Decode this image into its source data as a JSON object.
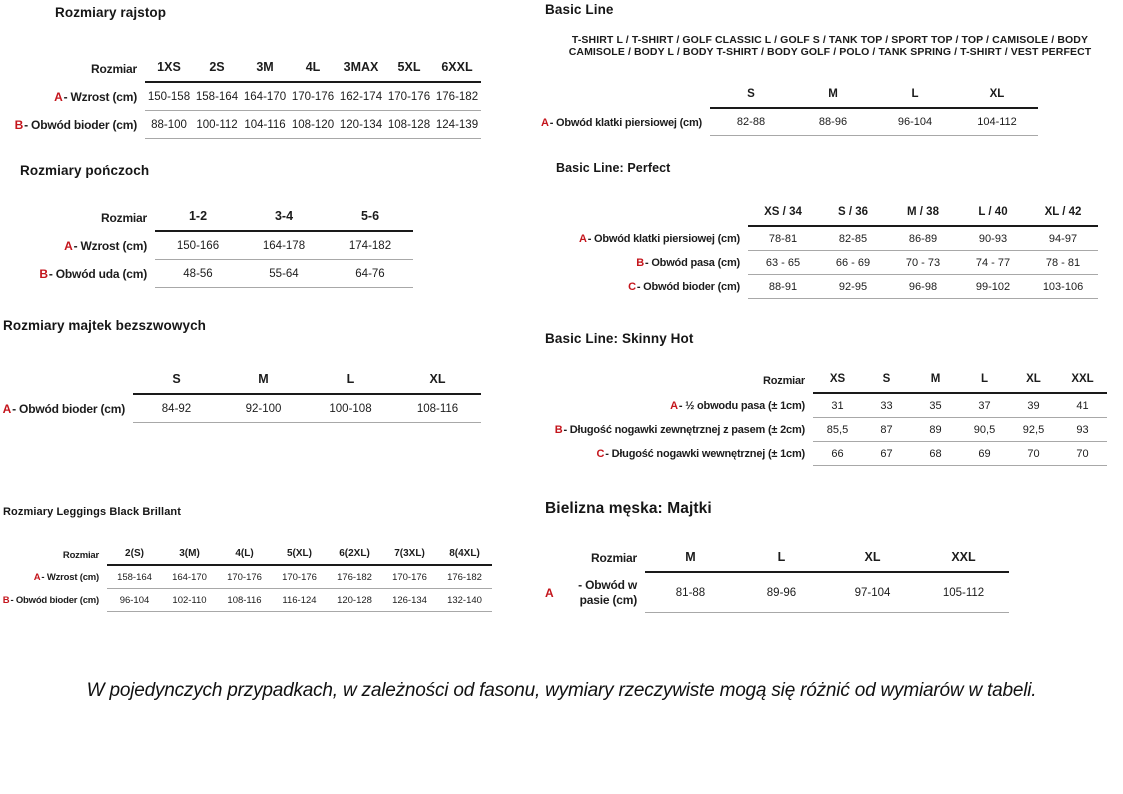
{
  "page": {
    "accent_red": "#c4151c",
    "footnote": "W pojedynczych przypadkach, w zależności od fasonu, wymiary rzeczywiste mogą się różnić od wymiarów w tabeli."
  },
  "sections": [
    {
      "id": "rajstop",
      "title": "Rozmiary rajstop",
      "table": {
        "corner": "Rozmiar",
        "columns": [
          "1XS",
          "2S",
          "3M",
          "4L",
          "3MAX",
          "5XL",
          "6XXL"
        ],
        "rows": [
          {
            "letter": "A",
            "label": " - Wzrost (cm)",
            "values": [
              "150-158",
              "158-164",
              "164-170",
              "170-176",
              "162-174",
              "170-176",
              "176-182"
            ]
          },
          {
            "letter": "B",
            "label": " - Obwód bioder (cm)",
            "values": [
              "88-100",
              "100-112",
              "104-116",
              "108-120",
              "120-134",
              "108-128",
              "124-139"
            ]
          }
        ]
      }
    },
    {
      "id": "ponczochy",
      "title": "Rozmiary pończoch",
      "table": {
        "corner": "Rozmiar",
        "columns": [
          "1-2",
          "3-4",
          "5-6"
        ],
        "rows": [
          {
            "letter": "A",
            "label": " - Wzrost (cm)",
            "values": [
              "150-166",
              "164-178",
              "174-182"
            ]
          },
          {
            "letter": "B",
            "label": " - Obwód uda (cm)",
            "values": [
              "48-56",
              "55-64",
              "64-76"
            ]
          }
        ]
      }
    },
    {
      "id": "majtek-bezszwowe",
      "title": "Rozmiary majtek bezszwowych",
      "table": {
        "corner": "",
        "columns": [
          "S",
          "M",
          "L",
          "XL"
        ],
        "rows": [
          {
            "letter": "A",
            "label": " - Obwód bioder (cm)",
            "values": [
              "84-92",
              "92-100",
              "100-108",
              "108-116"
            ]
          }
        ]
      }
    },
    {
      "id": "leggings",
      "title": "Rozmiary Leggings Black Brillant",
      "table": {
        "corner": "Rozmiar",
        "columns": [
          "2(S)",
          "3(M)",
          "4(L)",
          "5(XL)",
          "6(2XL)",
          "7(3XL)",
          "8(4XL)"
        ],
        "rows": [
          {
            "letter": "A",
            "label": " - Wzrost (cm)",
            "values": [
              "158-164",
              "164-170",
              "170-176",
              "170-176",
              "176-182",
              "170-176",
              "176-182"
            ]
          },
          {
            "letter": "B",
            "label": " - Obwód bioder (cm)",
            "values": [
              "96-104",
              "102-110",
              "108-116",
              "116-124",
              "120-128",
              "126-134",
              "132-140"
            ]
          }
        ]
      }
    },
    {
      "id": "basic-line",
      "title": "Basic Line",
      "subtitle_lines": [
        "T-SHIRT L / T-SHIRT / GOLF CLASSIC L / GOLF S / TANK TOP / SPORT TOP / TOP / CAMISOLE / BODY",
        "CAMISOLE / BODY L / BODY T-SHIRT / BODY GOLF / POLO / TANK SPRING / T-SHIRT / VEST PERFECT"
      ],
      "table": {
        "corner": "",
        "columns": [
          "S",
          "M",
          "L",
          "XL"
        ],
        "rows": [
          {
            "letter": "A",
            "label": " - Obwód klatki piersiowej (cm)",
            "values": [
              "82-88",
              "88-96",
              "96-104",
              "104-112"
            ]
          }
        ]
      }
    },
    {
      "id": "basic-line-perfect",
      "title": "Basic Line: Perfect",
      "table": {
        "corner": "",
        "columns": [
          "XS / 34",
          "S / 36",
          "M / 38",
          "L / 40",
          "XL / 42"
        ],
        "rows": [
          {
            "letter": "A",
            "label": " - Obwód klatki piersiowej (cm)",
            "values": [
              "78-81",
              "82-85",
              "86-89",
              "90-93",
              "94-97"
            ]
          },
          {
            "letter": "B",
            "label": " - Obwód pasa (cm)",
            "values": [
              "63 - 65",
              "66 - 69",
              "70 - 73",
              "74 - 77",
              "78 - 81"
            ]
          },
          {
            "letter": "C",
            "label": " - Obwód bioder (cm)",
            "values": [
              "88-91",
              "92-95",
              "96-98",
              "99-102",
              "103-106"
            ]
          }
        ]
      }
    },
    {
      "id": "basic-line-skinny-hot",
      "title": "Basic Line: Skinny Hot",
      "table": {
        "corner": "Rozmiar",
        "columns": [
          "XS",
          "S",
          "M",
          "L",
          "XL",
          "XXL"
        ],
        "rows": [
          {
            "letter": "A",
            "label": " - ½ obwodu pasa (± 1cm)",
            "values": [
              "31",
              "33",
              "35",
              "37",
              "39",
              "41"
            ]
          },
          {
            "letter": "B",
            "label": " - Długość nogawki zewnętrznej z pasem (± 2cm)",
            "values": [
              "85,5",
              "87",
              "89",
              "90,5",
              "92,5",
              "93"
            ]
          },
          {
            "letter": "C",
            "label": " - Długość nogawki wewnętrznej (± 1cm)",
            "values": [
              "66",
              "67",
              "68",
              "69",
              "70",
              "70"
            ]
          }
        ]
      }
    },
    {
      "id": "bielizna-meska-majtki",
      "title": "Bielizna męska: Majtki",
      "table": {
        "corner": "Rozmiar",
        "columns": [
          "M",
          "L",
          "XL",
          "XXL"
        ],
        "rows": [
          {
            "letter": "A",
            "label": " - Obwód w pasie (cm)",
            "values": [
              "81-88",
              "89-96",
              "97-104",
              "105-112"
            ]
          }
        ]
      }
    }
  ]
}
